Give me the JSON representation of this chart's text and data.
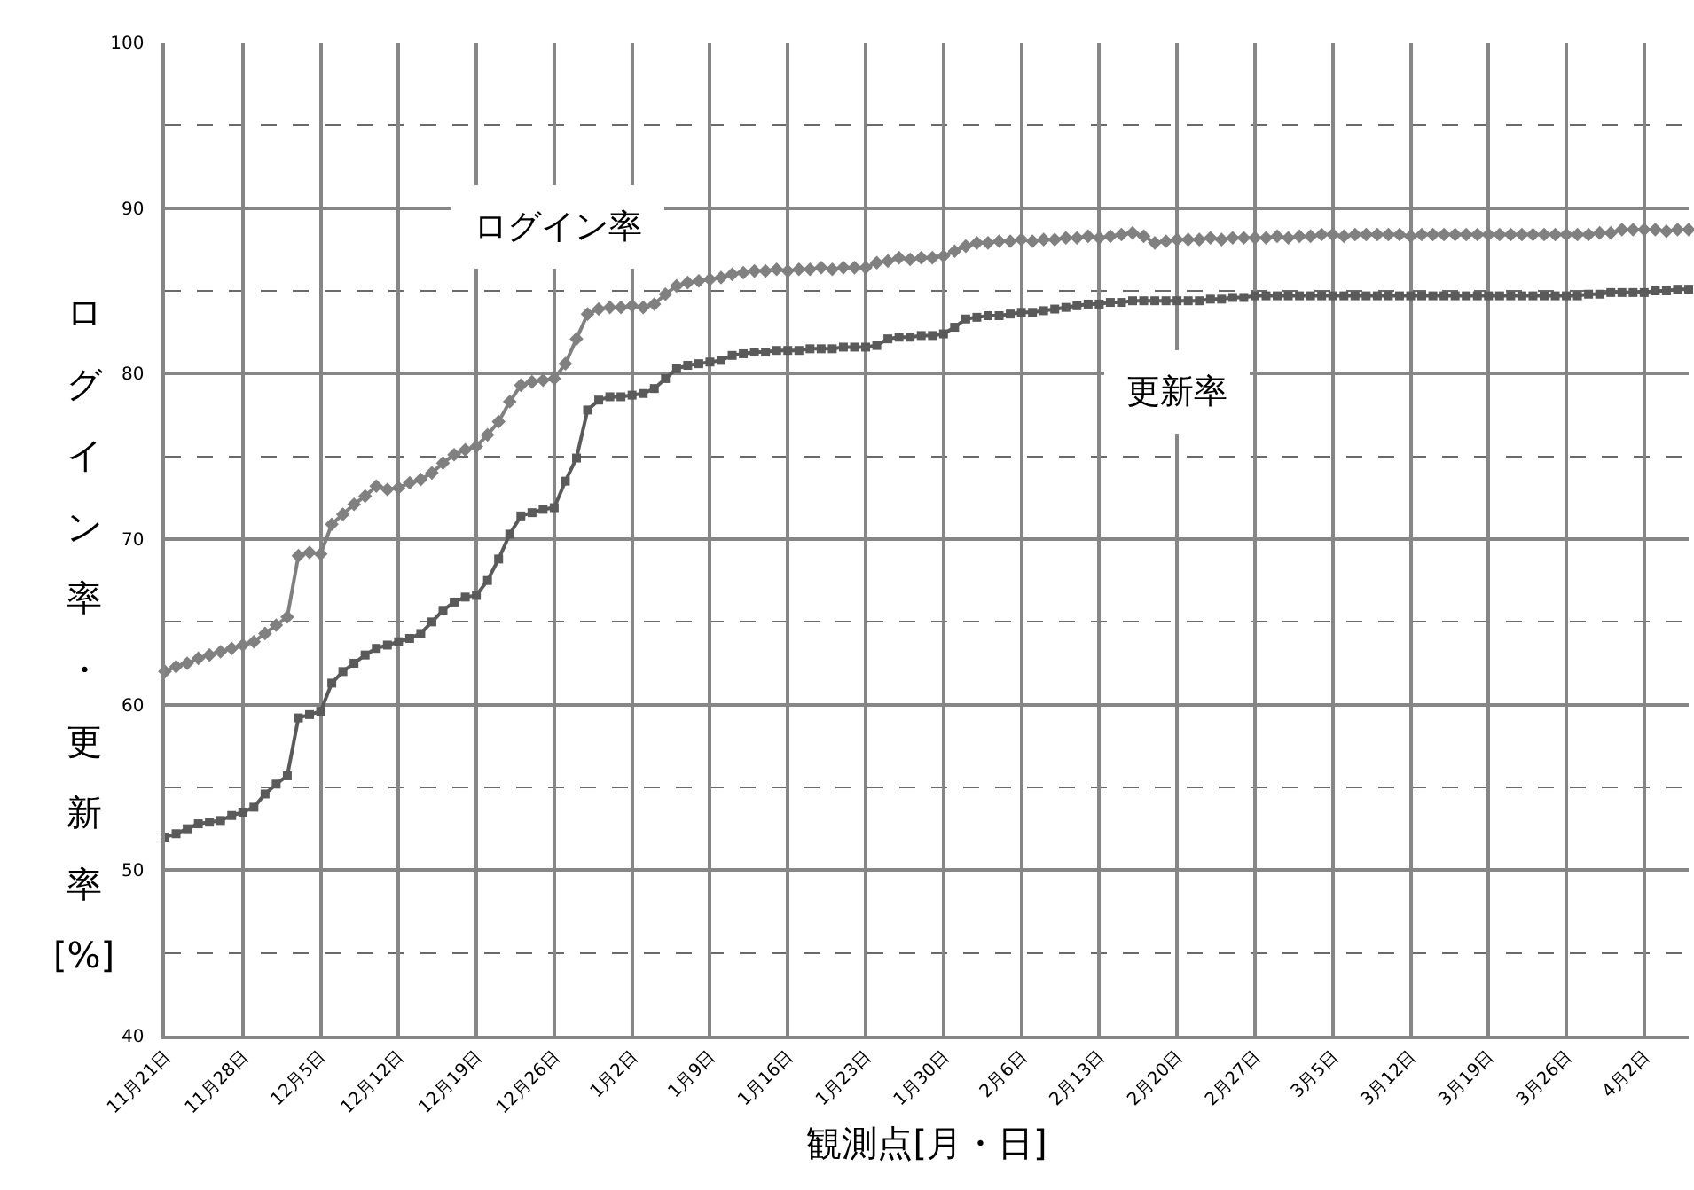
{
  "chart_data": {
    "type": "line",
    "xlabel": "観測点[月・日]",
    "ylabel": "ログイン率・更新率[%]",
    "categories": [
      "11月21日",
      null,
      null,
      null,
      null,
      null,
      null,
      "11月28日",
      null,
      null,
      null,
      null,
      null,
      null,
      "12月5日",
      null,
      null,
      null,
      null,
      null,
      null,
      "12月12日",
      null,
      null,
      null,
      null,
      null,
      null,
      "12月19日",
      null,
      null,
      null,
      null,
      null,
      null,
      "12月26日",
      null,
      null,
      null,
      null,
      null,
      null,
      "1月2日",
      null,
      null,
      null,
      null,
      null,
      null,
      "1月9日",
      null,
      null,
      null,
      null,
      null,
      null,
      "1月16日",
      null,
      null,
      null,
      null,
      null,
      null,
      "1月23日",
      null,
      null,
      null,
      null,
      null,
      null,
      "1月30日",
      null,
      null,
      null,
      null,
      null,
      null,
      "2月6日",
      null,
      null,
      null,
      null,
      null,
      null,
      "2月13日",
      null,
      null,
      null,
      null,
      null,
      null,
      "2月20日",
      null,
      null,
      null,
      null,
      null,
      null,
      "2月27日",
      null,
      null,
      null,
      null,
      null,
      null,
      "3月5日",
      null,
      null,
      null,
      null,
      null,
      null,
      "3月12日",
      null,
      null,
      null,
      null,
      null,
      null,
      "3月19日",
      null,
      null,
      null,
      null,
      null,
      null,
      "3月26日",
      null,
      null,
      null,
      null,
      null,
      null,
      "4月2日",
      null,
      null,
      null,
      null
    ],
    "series": [
      {
        "name": "ログイン率",
        "color": "#808080",
        "marker": "diamond",
        "values": [
          62.0,
          62.3,
          62.5,
          62.8,
          63.0,
          63.2,
          63.4,
          63.6,
          63.8,
          64.3,
          64.8,
          65.3,
          69.0,
          69.2,
          69.1,
          70.9,
          71.5,
          72.1,
          72.6,
          73.2,
          73.0,
          73.1,
          73.4,
          73.6,
          74.0,
          74.6,
          75.1,
          75.4,
          75.6,
          76.3,
          77.1,
          78.3,
          79.3,
          79.5,
          79.6,
          79.7,
          80.6,
          82.1,
          83.6,
          83.9,
          84.0,
          84.0,
          84.1,
          84.0,
          84.2,
          84.8,
          85.3,
          85.5,
          85.6,
          85.7,
          85.8,
          86.0,
          86.1,
          86.2,
          86.2,
          86.3,
          86.2,
          86.3,
          86.3,
          86.4,
          86.3,
          86.4,
          86.4,
          86.4,
          86.7,
          86.8,
          87.0,
          86.9,
          87.0,
          87.0,
          87.1,
          87.4,
          87.7,
          87.9,
          87.9,
          88.0,
          88.0,
          88.1,
          88.0,
          88.1,
          88.1,
          88.2,
          88.2,
          88.3,
          88.2,
          88.3,
          88.4,
          88.5,
          88.3,
          87.9,
          88.0,
          88.1,
          88.1,
          88.1,
          88.2,
          88.1,
          88.2,
          88.2,
          88.2,
          88.2,
          88.3,
          88.2,
          88.3,
          88.3,
          88.4,
          88.4,
          88.3,
          88.4,
          88.4,
          88.4,
          88.4,
          88.4,
          88.3,
          88.4,
          88.4,
          88.4,
          88.4,
          88.4,
          88.4,
          88.4,
          88.4,
          88.4,
          88.4,
          88.4,
          88.4,
          88.4,
          88.4,
          88.4,
          88.4,
          88.5,
          88.5,
          88.7,
          88.7,
          88.7,
          88.7,
          88.6,
          88.7,
          88.7
        ]
      },
      {
        "name": "更新率",
        "color": "#5a5a5a",
        "marker": "square",
        "values": [
          52.0,
          52.2,
          52.5,
          52.8,
          52.9,
          53.0,
          53.3,
          53.5,
          53.8,
          54.6,
          55.2,
          55.7,
          59.2,
          59.4,
          59.6,
          61.3,
          62.0,
          62.5,
          63.0,
          63.4,
          63.6,
          63.8,
          64.0,
          64.3,
          65.0,
          65.7,
          66.2,
          66.5,
          66.6,
          67.5,
          68.8,
          70.3,
          71.4,
          71.6,
          71.8,
          71.9,
          73.5,
          74.9,
          77.8,
          78.4,
          78.6,
          78.6,
          78.7,
          78.8,
          79.1,
          79.7,
          80.3,
          80.5,
          80.6,
          80.7,
          80.8,
          81.1,
          81.2,
          81.3,
          81.3,
          81.4,
          81.4,
          81.4,
          81.5,
          81.5,
          81.5,
          81.6,
          81.6,
          81.6,
          81.7,
          82.1,
          82.2,
          82.2,
          82.3,
          82.3,
          82.4,
          82.8,
          83.3,
          83.4,
          83.5,
          83.5,
          83.6,
          83.7,
          83.7,
          83.8,
          83.9,
          84.0,
          84.1,
          84.2,
          84.2,
          84.3,
          84.3,
          84.4,
          84.4,
          84.4,
          84.4,
          84.4,
          84.4,
          84.4,
          84.5,
          84.5,
          84.6,
          84.6,
          84.7,
          84.7,
          84.7,
          84.7,
          84.7,
          84.7,
          84.7,
          84.7,
          84.7,
          84.7,
          84.7,
          84.7,
          84.7,
          84.7,
          84.7,
          84.7,
          84.7,
          84.7,
          84.7,
          84.7,
          84.7,
          84.7,
          84.7,
          84.7,
          84.7,
          84.7,
          84.7,
          84.7,
          84.7,
          84.7,
          84.8,
          84.8,
          84.9,
          84.9,
          84.9,
          84.9,
          85.0,
          85.0,
          85.1,
          85.1
        ]
      }
    ],
    "ylim": [
      40,
      100
    ],
    "yticks": [
      40,
      {
        "value": 45,
        "label": null
      },
      50,
      {
        "value": 55,
        "label": null
      },
      60,
      {
        "value": 65,
        "label": null
      },
      70,
      {
        "value": 75,
        "label": null
      },
      80,
      {
        "value": 85,
        "label": null
      },
      90,
      {
        "value": 95,
        "label": null
      },
      100
    ],
    "grid": true,
    "line_style": "solid"
  }
}
